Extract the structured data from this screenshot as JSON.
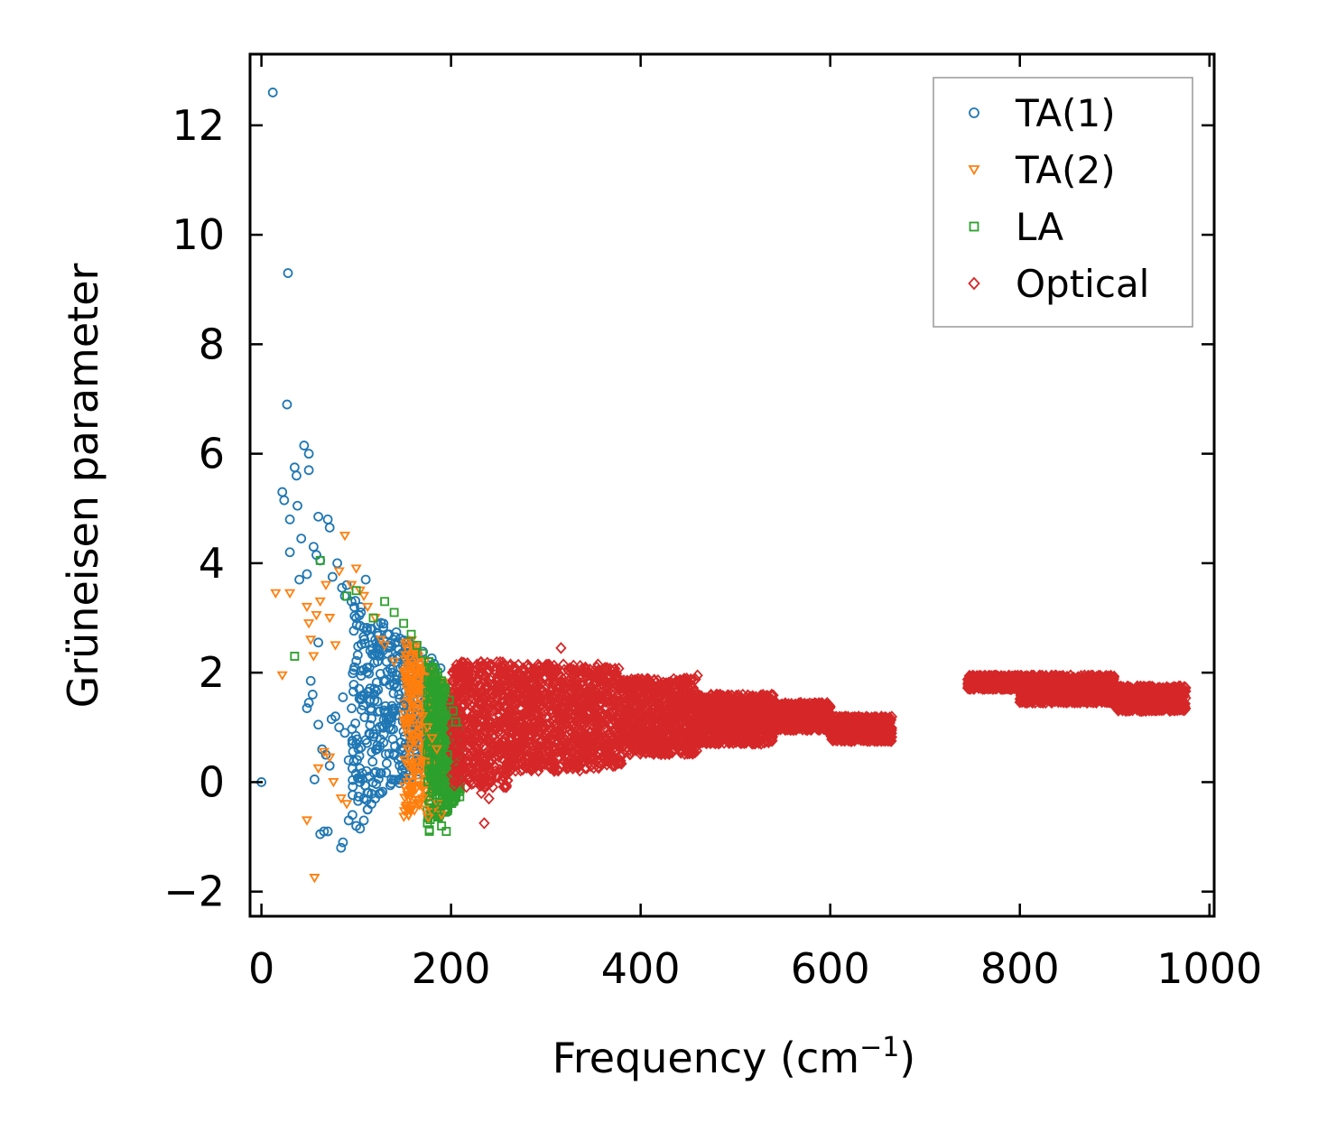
{
  "chart_data": {
    "type": "scatter",
    "title": "",
    "xlabel": "Frequency (cm",
    "xlabel_superscript": "−1",
    "xlabel_suffix": ")",
    "ylabel": "Grüneisen parameter",
    "xlim": [
      -12,
      1005
    ],
    "ylim": [
      -2.45,
      13.3
    ],
    "xticks": [
      0,
      200,
      400,
      600,
      800,
      1000
    ],
    "yticks": [
      -2,
      0,
      2,
      4,
      6,
      8,
      10,
      12
    ],
    "xtick_labels": [
      "0",
      "200",
      "400",
      "600",
      "800",
      "1000"
    ],
    "ytick_labels": [
      "−2",
      "0",
      "2",
      "4",
      "6",
      "8",
      "10",
      "12"
    ],
    "grid": false,
    "legend_position": "top-right",
    "series": [
      {
        "name": "TA(1)",
        "marker": "circle",
        "color": "#1f77b4",
        "x": [
          0,
          12,
          28,
          27,
          45,
          50,
          50,
          35,
          37,
          22,
          24,
          30,
          38,
          42,
          60,
          70,
          72,
          30,
          55,
          58,
          48,
          40,
          62,
          75,
          80,
          85,
          88,
          90,
          95,
          98,
          100,
          105,
          110,
          115,
          120,
          128,
          132,
          138,
          140,
          145,
          150,
          52,
          54,
          60,
          64,
          68,
          72,
          74,
          48,
          50,
          56,
          60,
          78,
          82,
          86,
          88,
          92,
          96,
          100,
          104,
          108,
          112,
          62,
          66,
          70,
          84,
          86,
          92,
          96,
          100,
          104,
          108,
          112,
          116,
          120
        ],
        "y": [
          0.0,
          12.6,
          9.3,
          6.9,
          6.15,
          6.0,
          5.7,
          5.75,
          5.6,
          5.3,
          5.15,
          4.8,
          5.05,
          4.45,
          4.85,
          4.8,
          4.65,
          4.2,
          4.3,
          4.15,
          3.8,
          3.7,
          4.05,
          3.75,
          4.0,
          3.55,
          3.4,
          3.6,
          3.3,
          3.2,
          3.0,
          3.1,
          3.7,
          2.8,
          2.6,
          2.4,
          2.2,
          2.0,
          1.8,
          1.6,
          1.4,
          1.85,
          1.6,
          1.05,
          0.6,
          0.5,
          0.3,
          1.15,
          1.35,
          1.45,
          0.05,
          2.55,
          1.2,
          1.0,
          1.55,
          0.9,
          0.4,
          0.25,
          0.7,
          0.0,
          -0.3,
          -0.5,
          -0.95,
          -0.9,
          -0.9,
          -1.2,
          -1.1,
          -0.7,
          -0.6,
          -0.8,
          -0.85,
          -0.7,
          -0.5,
          -0.4,
          -0.3
        ],
        "cloud": {
          "x_range": [
            95,
            190
          ],
          "y_range": [
            -0.5,
            3.4
          ],
          "description": "dense cluster"
        }
      },
      {
        "name": "TA(2)",
        "marker": "triangle-down",
        "color": "#ff7f0e",
        "x": [
          15,
          22,
          30,
          48,
          50,
          52,
          55,
          58,
          62,
          68,
          72,
          78,
          82,
          88,
          95,
          100,
          104,
          108,
          112,
          120,
          126,
          130,
          140,
          150,
          155,
          160,
          165,
          170,
          175,
          180,
          185,
          48,
          56,
          60,
          66,
          72,
          76,
          84,
          90,
          170,
          172,
          176,
          180,
          186,
          190
        ],
        "y": [
          3.45,
          1.95,
          3.45,
          3.2,
          2.9,
          2.6,
          2.3,
          3.05,
          3.3,
          3.6,
          3.0,
          2.5,
          3.85,
          4.5,
          3.6,
          3.9,
          3.5,
          3.4,
          3.2,
          3.0,
          2.6,
          2.5,
          2.2,
          2.0,
          1.8,
          1.6,
          1.4,
          1.2,
          1.0,
          0.8,
          0.6,
          -0.7,
          -1.75,
          0.25,
          0.55,
          0.45,
          0.0,
          -0.3,
          -0.4,
          -0.3,
          -0.5,
          -0.65,
          -0.55,
          -0.4,
          -0.6
        ],
        "cloud": {
          "x_range": [
            150,
            200
          ],
          "y_range": [
            -0.7,
            2.8
          ],
          "description": "dense cluster"
        }
      },
      {
        "name": "LA",
        "marker": "square",
        "color": "#2ca02c",
        "x": [
          35,
          62,
          90,
          100,
          118,
          130,
          140,
          150,
          158,
          164,
          170,
          176,
          182,
          186,
          190,
          194,
          198,
          202,
          205,
          196,
          192,
          188,
          185,
          190,
          195
        ],
        "y": [
          2.3,
          4.05,
          3.4,
          3.5,
          3.0,
          3.3,
          3.1,
          2.9,
          2.7,
          2.5,
          2.35,
          2.2,
          2.1,
          2.0,
          1.85,
          1.7,
          1.5,
          1.3,
          1.1,
          0.5,
          0.0,
          -0.3,
          -0.5,
          -0.8,
          -0.9
        ],
        "cloud": {
          "x_range": [
            175,
            210
          ],
          "y_range": [
            -0.95,
            2.3
          ],
          "description": "dense cluster"
        }
      },
      {
        "name": "Optical",
        "marker": "diamond",
        "color": "#d62728",
        "x": [
          316,
          235,
          240,
          232,
          355,
          460,
          220,
          260,
          300,
          330,
          380,
          420,
          480,
          520,
          560,
          600,
          640,
          660,
          750,
          780,
          820,
          860,
          900,
          940,
          970
        ],
        "y": [
          2.45,
          -0.75,
          -0.3,
          -0.2,
          2.15,
          1.95,
          2.1,
          2.0,
          2.1,
          1.9,
          1.85,
          1.7,
          1.6,
          1.4,
          1.3,
          1.05,
          1.1,
          1.15,
          1.9,
          1.85,
          1.8,
          1.75,
          1.7,
          1.55,
          1.4
        ],
        "cloud": {
          "bands": [
            {
              "x": [
                200,
                260
              ],
              "y_low": -0.1,
              "y_high": 2.2
            },
            {
              "x": [
                260,
                340
              ],
              "y_low": 0.2,
              "y_high": 2.15
            },
            {
              "x": [
                340,
                380
              ],
              "y_low": 0.25,
              "y_high": 2.1
            },
            {
              "x": [
                380,
                460
              ],
              "y_low": 0.5,
              "y_high": 1.9
            },
            {
              "x": [
                460,
                540
              ],
              "y_low": 0.7,
              "y_high": 1.6
            },
            {
              "x": [
                540,
                600
              ],
              "y_low": 0.95,
              "y_high": 1.45
            },
            {
              "x": [
                600,
                665
              ],
              "y_low": 0.75,
              "y_high": 1.2
            },
            {
              "x": [
                745,
                800
              ],
              "y_low": 1.7,
              "y_high": 1.95
            },
            {
              "x": [
                800,
                900
              ],
              "y_low": 1.45,
              "y_high": 1.95
            },
            {
              "x": [
                900,
                975
              ],
              "y_low": 1.3,
              "y_high": 1.75
            }
          ]
        }
      }
    ]
  }
}
